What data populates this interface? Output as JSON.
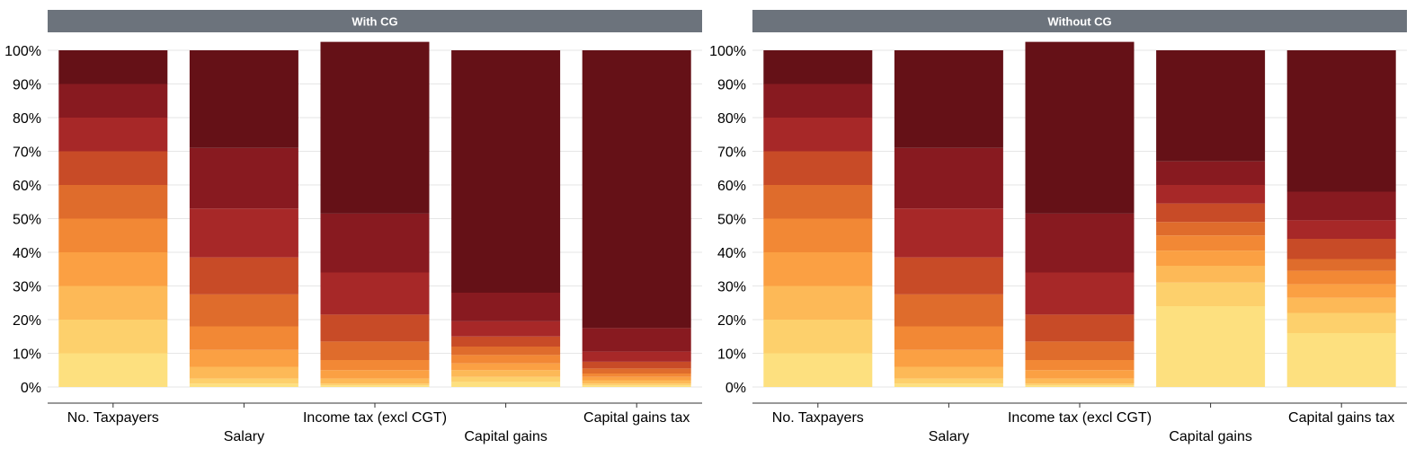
{
  "colors": {
    "strip_bg": "#6c737c",
    "strip_text": "#ffffff",
    "grid": "#e6e6e6",
    "axis": "#333333",
    "decile_colors": [
      "#fde07f",
      "#fdd06c",
      "#fdb957",
      "#fba043",
      "#f28835",
      "#df6c2c",
      "#c84b27",
      "#a72828",
      "#881a20",
      "#651117"
    ]
  },
  "chart_data": [
    {
      "type": "bar",
      "stacked": true,
      "title": "With CG",
      "categories": [
        "No. Taxpayers",
        "Salary",
        "Income tax (excl CGT)",
        "Capital gains",
        "Capital gains tax"
      ],
      "yticks": [
        "0%",
        "10%",
        "20%",
        "30%",
        "40%",
        "50%",
        "60%",
        "70%",
        "80%",
        "90%",
        "100%"
      ],
      "ylim": [
        0,
        100
      ],
      "grid": true,
      "series": [
        {
          "values": [
            10,
            1,
            0.5,
            1.5,
            0.5
          ]
        },
        {
          "values": [
            10,
            1.5,
            0.5,
            1.5,
            0.5
          ]
        },
        {
          "values": [
            10,
            3.5,
            1.5,
            2,
            1
          ]
        },
        {
          "values": [
            10,
            5,
            2.5,
            2,
            1
          ]
        },
        {
          "values": [
            10,
            7,
            3,
            2.5,
            1
          ]
        },
        {
          "values": [
            10,
            9.5,
            5.5,
            2.5,
            1.5
          ]
        },
        {
          "values": [
            10,
            11,
            8,
            3,
            2
          ]
        },
        {
          "values": [
            10,
            14.5,
            12.5,
            4.5,
            3
          ]
        },
        {
          "values": [
            10,
            18,
            17.5,
            8.5,
            7
          ]
        },
        {
          "values": [
            10,
            29,
            51,
            72,
            82.5
          ]
        }
      ]
    },
    {
      "type": "bar",
      "stacked": true,
      "title": "Without CG",
      "categories": [
        "No. Taxpayers",
        "Salary",
        "Income tax (excl CGT)",
        "Capital gains",
        "Capital gains tax"
      ],
      "yticks": [
        "0%",
        "10%",
        "20%",
        "30%",
        "40%",
        "50%",
        "60%",
        "70%",
        "80%",
        "90%",
        "100%"
      ],
      "ylim": [
        0,
        100
      ],
      "grid": true,
      "series": [
        {
          "values": [
            10,
            1,
            0.5,
            24,
            16
          ]
        },
        {
          "values": [
            10,
            1.5,
            0.5,
            7,
            6
          ]
        },
        {
          "values": [
            10,
            3.5,
            1.5,
            5,
            4.5
          ]
        },
        {
          "values": [
            10,
            5,
            2.5,
            4.5,
            4
          ]
        },
        {
          "values": [
            10,
            7,
            3,
            4.5,
            4
          ]
        },
        {
          "values": [
            10,
            9.5,
            5.5,
            4,
            3.5
          ]
        },
        {
          "values": [
            10,
            11,
            8,
            5.5,
            6
          ]
        },
        {
          "values": [
            10,
            14.5,
            12.5,
            5.5,
            5.5
          ]
        },
        {
          "values": [
            10,
            18,
            17.5,
            7,
            8.5
          ]
        },
        {
          "values": [
            10,
            29,
            51,
            33,
            42
          ]
        }
      ]
    }
  ]
}
